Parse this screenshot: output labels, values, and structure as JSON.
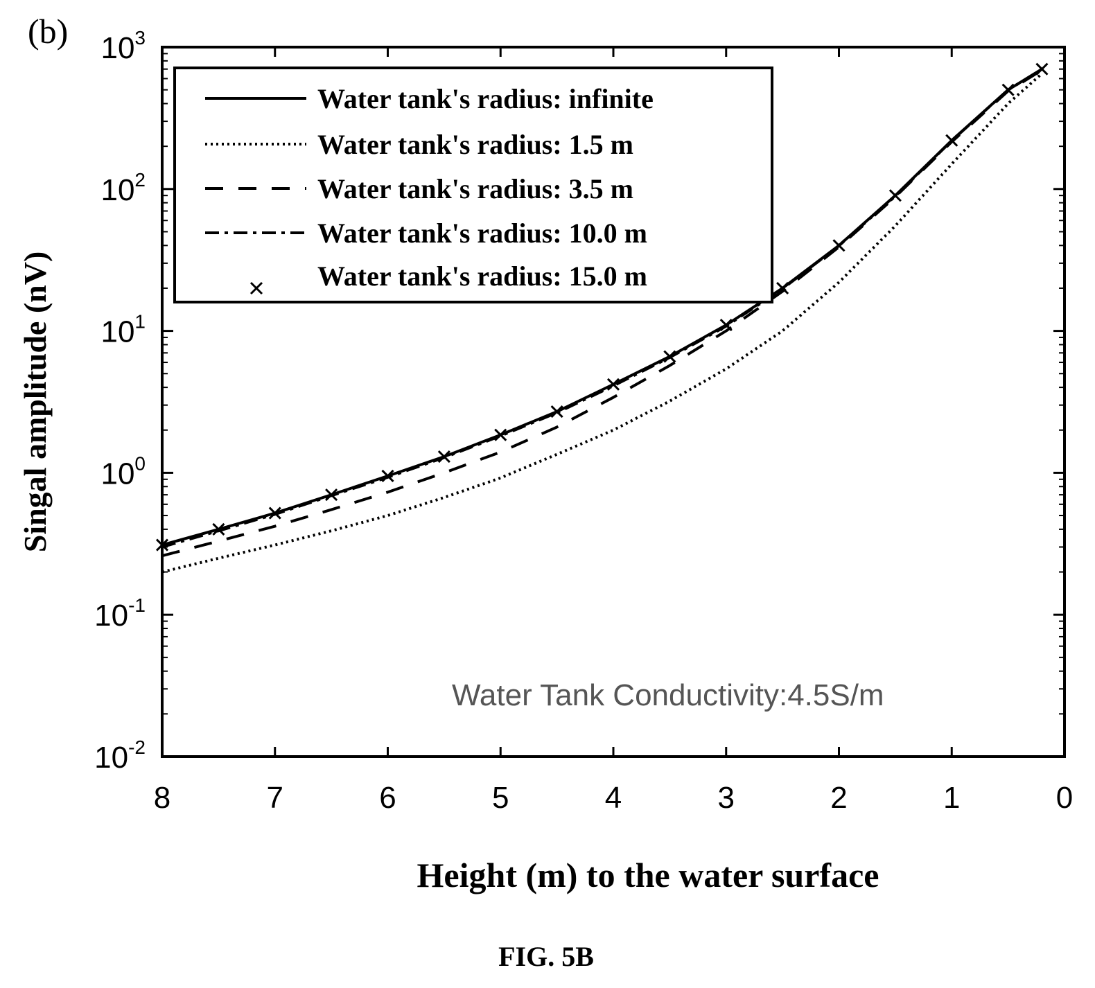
{
  "panel_label": "(b)",
  "figure_caption": "FIG. 5B",
  "chart_data": {
    "type": "line",
    "title": "",
    "xlabel": "Height (m) to the water surface",
    "ylabel": "Singal amplitude (nV)",
    "x_reversed": true,
    "xlim": [
      0,
      8
    ],
    "ylim": [
      0.01,
      1000
    ],
    "yscale": "log",
    "x_ticks": [
      "8",
      "7",
      "6",
      "5",
      "4",
      "3",
      "2",
      "1",
      "0"
    ],
    "x_tick_values": [
      8,
      7,
      6,
      5,
      4,
      3,
      2,
      1,
      0
    ],
    "y_ticks": [
      {
        "base": "10",
        "exp": "-2",
        "value": 0.01
      },
      {
        "base": "10",
        "exp": "-1",
        "value": 0.1
      },
      {
        "base": "10",
        "exp": "0",
        "value": 1
      },
      {
        "base": "10",
        "exp": "1",
        "value": 10
      },
      {
        "base": "10",
        "exp": "2",
        "value": 100
      },
      {
        "base": "10",
        "exp": "3",
        "value": 1000
      }
    ],
    "grid": false,
    "legend_position": "top-left",
    "annotation": "Water Tank Conductivity:4.5S/m",
    "x": [
      8,
      7.5,
      7,
      6.5,
      6,
      5.5,
      5,
      4.5,
      4,
      3.5,
      3,
      2.5,
      2,
      1.5,
      1,
      0.5,
      0.2
    ],
    "series": [
      {
        "name": "Water tank's radius: infinite",
        "style": "solid",
        "values": [
          0.31,
          0.4,
          0.52,
          0.7,
          0.95,
          1.3,
          1.85,
          2.7,
          4.2,
          6.6,
          11,
          20,
          40,
          90,
          220,
          500,
          700
        ]
      },
      {
        "name": "Water tank's radius:  1.5 m",
        "style": "dotted",
        "values": [
          0.2,
          0.25,
          0.31,
          0.39,
          0.5,
          0.67,
          0.92,
          1.35,
          2.0,
          3.2,
          5.4,
          10,
          22,
          55,
          150,
          400,
          650
        ]
      },
      {
        "name": "Water tank's radius: 3.5 m",
        "style": "dashed",
        "values": [
          0.26,
          0.33,
          0.42,
          0.55,
          0.73,
          1.0,
          1.4,
          2.1,
          3.4,
          5.7,
          10,
          19,
          39,
          88,
          215,
          490,
          690
        ]
      },
      {
        "name": "Water tank's radius: 10.0 m",
        "style": "dashdot",
        "values": [
          0.3,
          0.39,
          0.51,
          0.69,
          0.93,
          1.28,
          1.82,
          2.65,
          4.1,
          6.5,
          10.8,
          19.8,
          39.8,
          89,
          219,
          499,
          699
        ]
      },
      {
        "name": "Water tank's radius: 15.0 m",
        "style": "marker-x",
        "values": [
          0.31,
          0.4,
          0.52,
          0.7,
          0.95,
          1.3,
          1.85,
          2.7,
          4.2,
          6.6,
          11,
          20,
          40,
          90,
          220,
          500,
          700
        ]
      }
    ]
  }
}
